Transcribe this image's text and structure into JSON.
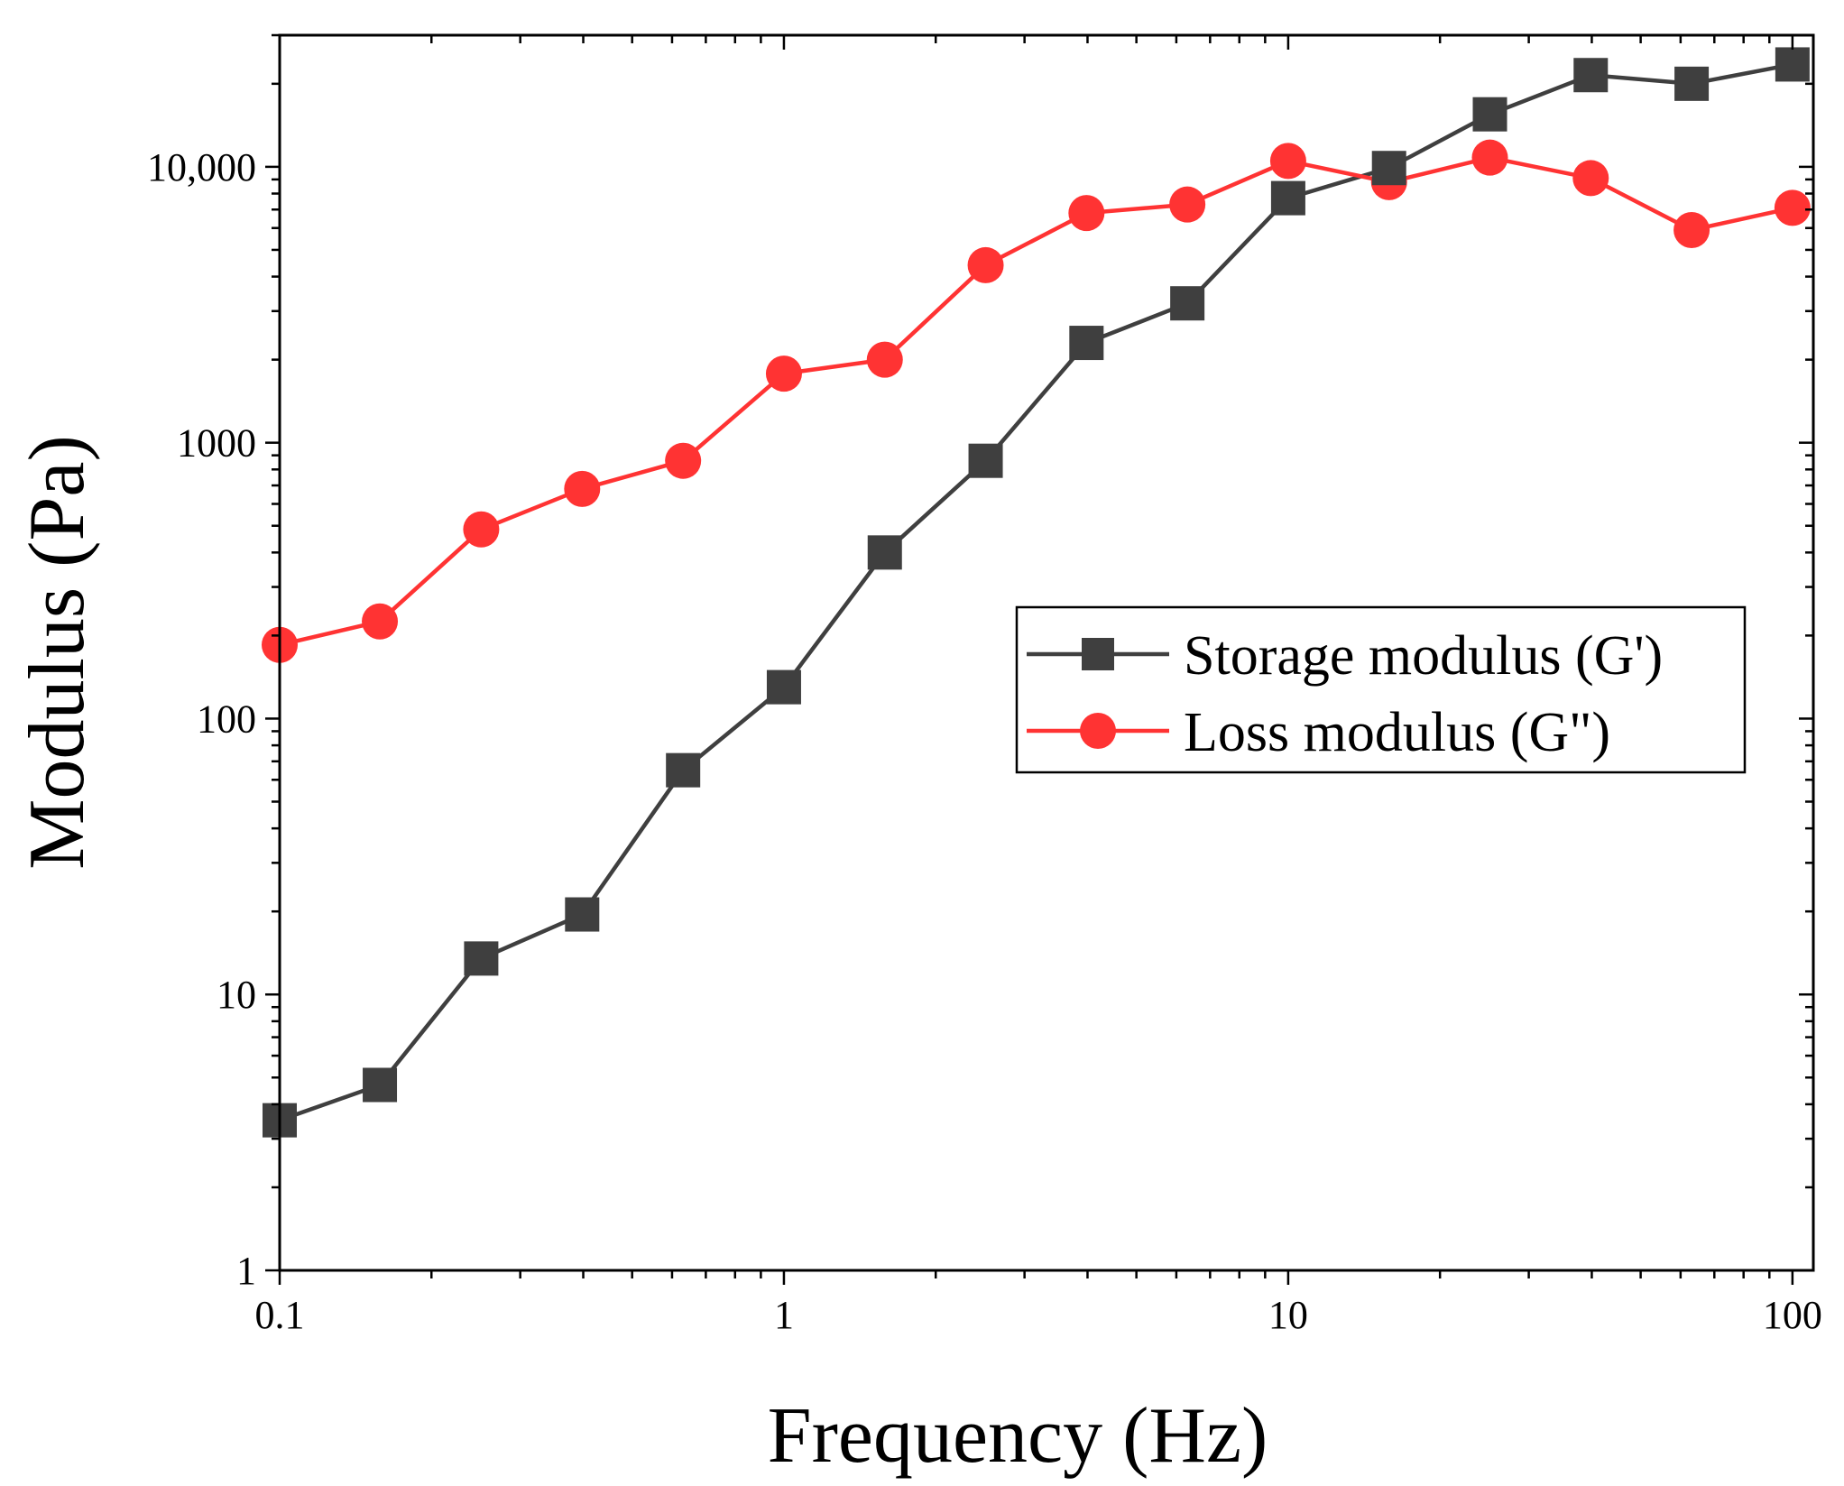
{
  "chart_data": {
    "type": "line",
    "title": "",
    "xlabel": "Frequency (Hz)",
    "ylabel": "Modulus (Pa)",
    "xscale": "log",
    "yscale": "log",
    "xlim": [
      0.1,
      110
    ],
    "ylim": [
      1,
      30000
    ],
    "x_ticks": [
      0.1,
      1,
      10,
      100
    ],
    "x_tick_labels": [
      "0.1",
      "1",
      "10",
      "100"
    ],
    "y_ticks": [
      1,
      10,
      100,
      1000,
      10000
    ],
    "y_tick_labels": [
      "1",
      "10",
      "100",
      "1000",
      "10,000"
    ],
    "grid": false,
    "legend_position": "center-right",
    "x": [
      0.1,
      0.158,
      0.251,
      0.398,
      0.631,
      1,
      1.585,
      2.512,
      3.981,
      6.31,
      10,
      15.85,
      25.12,
      39.81,
      63.1,
      100
    ],
    "series": [
      {
        "name": "Storage modulus (G')",
        "color": "#3f3f3f",
        "marker": "square",
        "values": [
          3.5,
          4.7,
          13.5,
          19.5,
          65,
          130,
          400,
          860,
          2300,
          3200,
          7700,
          9900,
          15500,
          21500,
          20000,
          23500
        ]
      },
      {
        "name": "Loss modulus (G\")",
        "color": "#ff3333",
        "marker": "circle",
        "values": [
          185,
          225,
          485,
          680,
          860,
          1780,
          2000,
          4400,
          6800,
          7300,
          10500,
          8800,
          10800,
          9100,
          5900,
          7100
        ]
      }
    ]
  }
}
